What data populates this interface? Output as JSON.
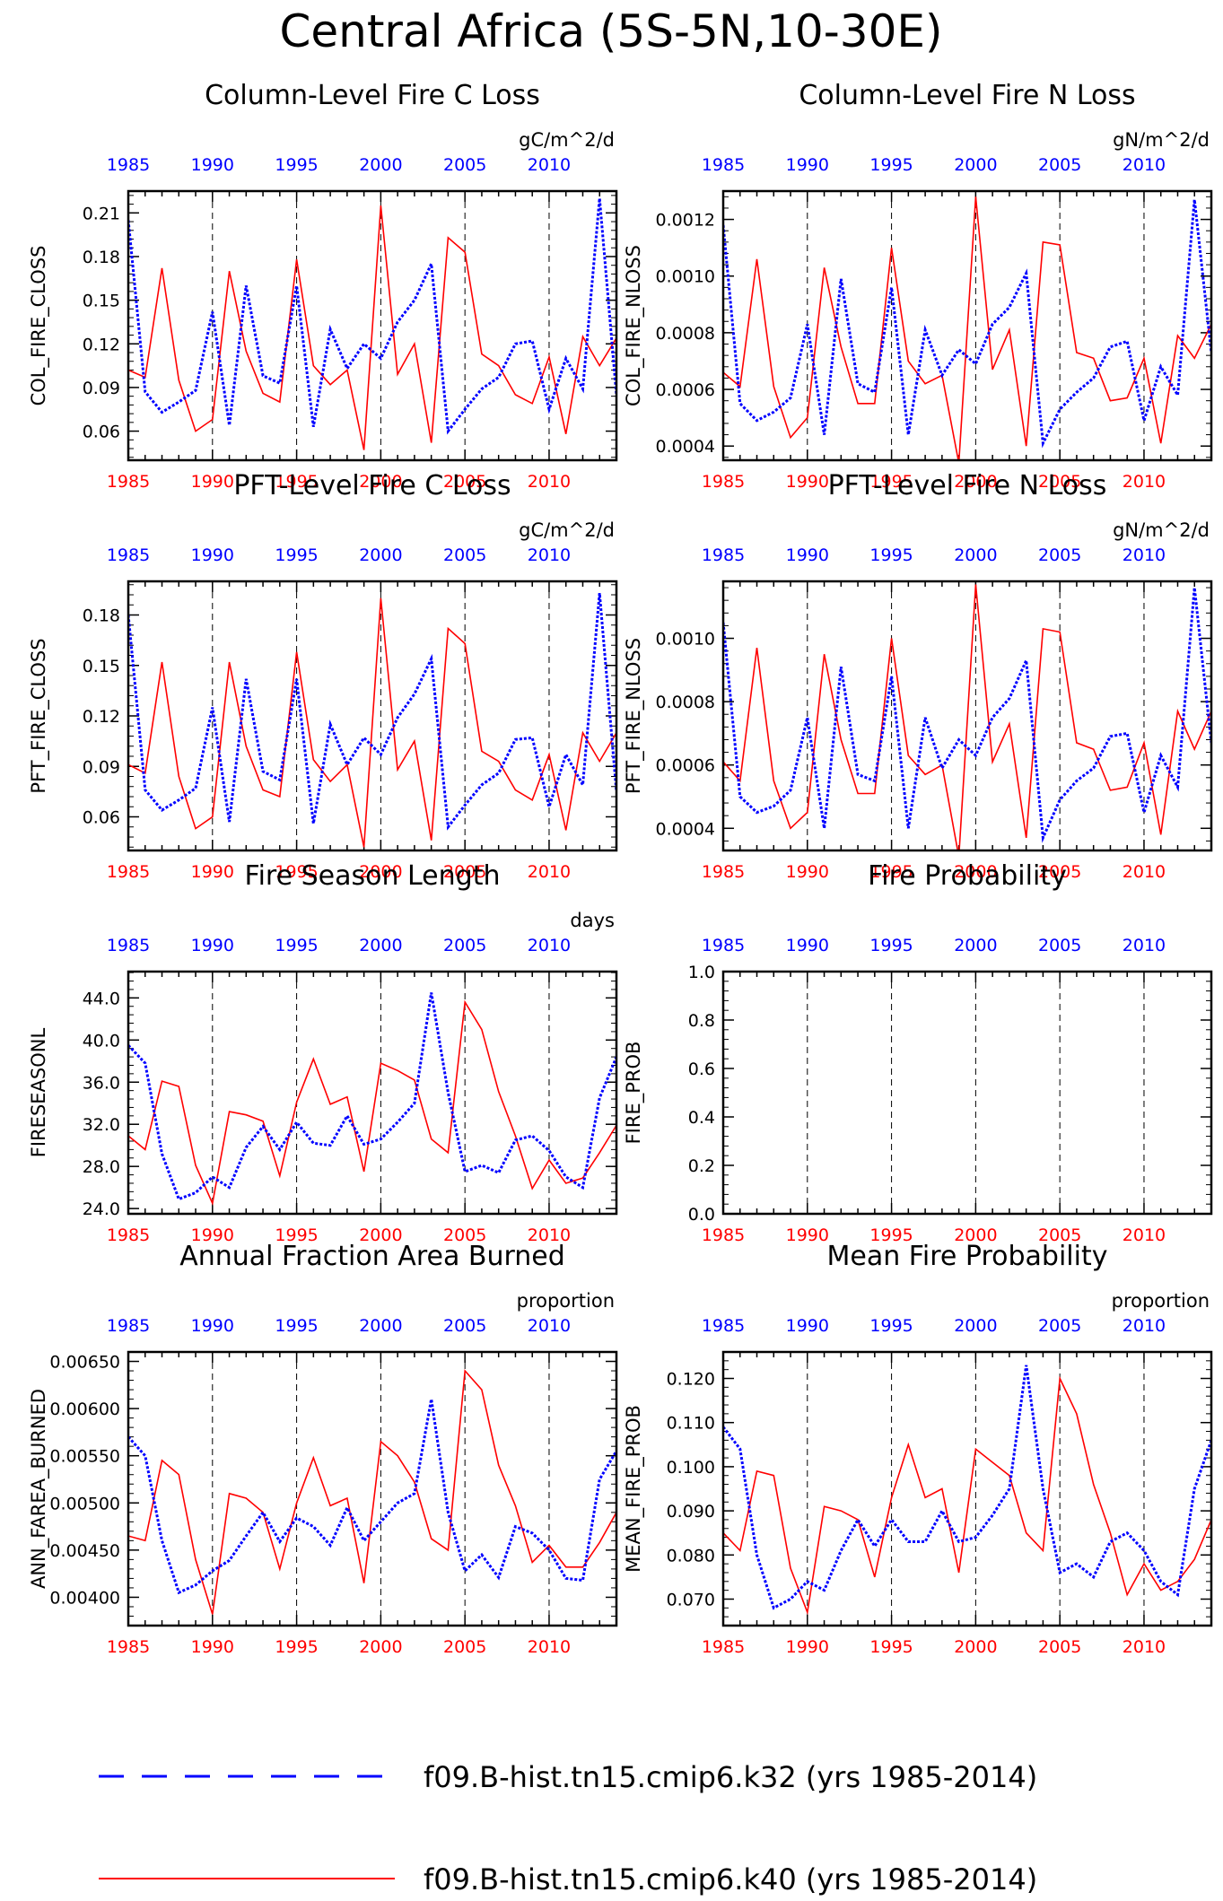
{
  "page": {
    "title": "Central Africa (5S-5N,10-30E)"
  },
  "legend": [
    {
      "label": "f09.B-hist.tn15.cmip6.k32 (yrs 1985-2014)",
      "color": "#0000ff",
      "style": "dashed"
    },
    {
      "label": "f09.B-hist.tn15.cmip6.k40 (yrs 1985-2014)",
      "color": "#ff0000",
      "style": "solid"
    }
  ],
  "chart_data": [
    {
      "type": "line",
      "title": "Column-Level Fire C Loss",
      "ylabel": "COL_FIRE_CLOSS",
      "units": "gC/m^2/d",
      "x": [
        1985,
        1986,
        1987,
        1988,
        1989,
        1990,
        1991,
        1992,
        1993,
        1994,
        1995,
        1996,
        1997,
        1998,
        1999,
        2000,
        2001,
        2002,
        2003,
        2004,
        2005,
        2006,
        2007,
        2008,
        2009,
        2010,
        2011,
        2012,
        2013,
        2014
      ],
      "xlim": [
        1985,
        2014
      ],
      "xticks": [
        "1985",
        "1990",
        "1995",
        "2000",
        "2005",
        "2010"
      ],
      "ylim": [
        0.04,
        0.225
      ],
      "yticks": [
        "0.06",
        "0.09",
        "0.12",
        "0.15",
        "0.18",
        "0.21"
      ],
      "series": [
        {
          "color": "#0000ff",
          "values": [
            0.205,
            0.087,
            0.073,
            0.08,
            0.088,
            0.142,
            0.064,
            0.16,
            0.098,
            0.093,
            0.16,
            0.063,
            0.13,
            0.103,
            0.12,
            0.11,
            0.135,
            0.15,
            0.175,
            0.06,
            0.075,
            0.089,
            0.097,
            0.12,
            0.122,
            0.075,
            0.11,
            0.089,
            0.22,
            0.085
          ]
        },
        {
          "color": "#ff0000",
          "values": [
            0.102,
            0.097,
            0.172,
            0.095,
            0.06,
            0.068,
            0.17,
            0.115,
            0.086,
            0.08,
            0.178,
            0.105,
            0.092,
            0.102,
            0.047,
            0.215,
            0.099,
            0.12,
            0.052,
            0.193,
            0.183,
            0.113,
            0.105,
            0.085,
            0.079,
            0.111,
            0.058,
            0.125,
            0.105,
            0.124
          ]
        }
      ]
    },
    {
      "type": "line",
      "title": "Column-Level Fire N Loss",
      "ylabel": "COL_FIRE_NLOSS",
      "units": "gN/m^2/d",
      "x": [
        1985,
        1986,
        1987,
        1988,
        1989,
        1990,
        1991,
        1992,
        1993,
        1994,
        1995,
        1996,
        1997,
        1998,
        1999,
        2000,
        2001,
        2002,
        2003,
        2004,
        2005,
        2006,
        2007,
        2008,
        2009,
        2010,
        2011,
        2012,
        2013,
        2014
      ],
      "xlim": [
        1985,
        2014
      ],
      "xticks": [
        "1985",
        "1990",
        "1995",
        "2000",
        "2005",
        "2010"
      ],
      "ylim": [
        0.00035,
        0.0013
      ],
      "yticks": [
        "0.0004",
        "0.0006",
        "0.0008",
        "0.0010",
        "0.0012"
      ],
      "series": [
        {
          "color": "#0000ff",
          "values": [
            0.00118,
            0.00055,
            0.00049,
            0.00052,
            0.00057,
            0.00083,
            0.00044,
            0.00099,
            0.00062,
            0.00059,
            0.00096,
            0.00044,
            0.00081,
            0.00065,
            0.00074,
            0.00069,
            0.00083,
            0.00089,
            0.00101,
            0.00041,
            0.00053,
            0.00059,
            0.00064,
            0.00075,
            0.00077,
            0.00049,
            0.00068,
            0.00058,
            0.00127,
            0.00073
          ]
        },
        {
          "color": "#ff0000",
          "values": [
            0.00066,
            0.00061,
            0.00106,
            0.00061,
            0.00043,
            0.0005,
            0.00103,
            0.00075,
            0.00055,
            0.00055,
            0.0011,
            0.0007,
            0.00062,
            0.00065,
            0.00034,
            0.00128,
            0.00067,
            0.00081,
            0.0004,
            0.00112,
            0.00111,
            0.00073,
            0.00071,
            0.00056,
            0.00057,
            0.00071,
            0.00041,
            0.00079,
            0.00071,
            0.00083
          ]
        }
      ]
    },
    {
      "type": "line",
      "title": "PFT-Level Fire C Loss",
      "ylabel": "PFT_FIRE_CLOSS",
      "units": "gC/m^2/d",
      "x": [
        1985,
        1986,
        1987,
        1988,
        1989,
        1990,
        1991,
        1992,
        1993,
        1994,
        1995,
        1996,
        1997,
        1998,
        1999,
        2000,
        2001,
        2002,
        2003,
        2004,
        2005,
        2006,
        2007,
        2008,
        2009,
        2010,
        2011,
        2012,
        2013,
        2014
      ],
      "xlim": [
        1985,
        2014
      ],
      "xticks": [
        "1985",
        "1990",
        "1995",
        "2000",
        "2005",
        "2010"
      ],
      "ylim": [
        0.04,
        0.2
      ],
      "yticks": [
        "0.06",
        "0.09",
        "0.12",
        "0.15",
        "0.18"
      ],
      "series": [
        {
          "color": "#0000ff",
          "values": [
            0.18,
            0.076,
            0.064,
            0.07,
            0.077,
            0.125,
            0.057,
            0.142,
            0.087,
            0.082,
            0.142,
            0.056,
            0.115,
            0.091,
            0.107,
            0.097,
            0.119,
            0.133,
            0.154,
            0.054,
            0.067,
            0.079,
            0.086,
            0.106,
            0.107,
            0.066,
            0.097,
            0.079,
            0.193,
            0.075
          ]
        },
        {
          "color": "#ff0000",
          "values": [
            0.091,
            0.086,
            0.152,
            0.084,
            0.053,
            0.06,
            0.152,
            0.102,
            0.076,
            0.072,
            0.158,
            0.094,
            0.081,
            0.091,
            0.042,
            0.19,
            0.088,
            0.105,
            0.046,
            0.172,
            0.163,
            0.099,
            0.093,
            0.076,
            0.07,
            0.097,
            0.052,
            0.11,
            0.093,
            0.11
          ]
        }
      ]
    },
    {
      "type": "line",
      "title": "PFT-Level Fire N Loss",
      "ylabel": "PFT_FIRE_NLOSS",
      "units": "gN/m^2/d",
      "x": [
        1985,
        1986,
        1987,
        1988,
        1989,
        1990,
        1991,
        1992,
        1993,
        1994,
        1995,
        1996,
        1997,
        1998,
        1999,
        2000,
        2001,
        2002,
        2003,
        2004,
        2005,
        2006,
        2007,
        2008,
        2009,
        2010,
        2011,
        2012,
        2013,
        2014
      ],
      "xlim": [
        1985,
        2014
      ],
      "xticks": [
        "1985",
        "1990",
        "1995",
        "2000",
        "2005",
        "2010"
      ],
      "ylim": [
        0.00033,
        0.00118
      ],
      "yticks": [
        "0.0004",
        "0.0006",
        "0.0008",
        "0.0010"
      ],
      "series": [
        {
          "color": "#0000ff",
          "values": [
            0.00105,
            0.0005,
            0.00045,
            0.00047,
            0.00052,
            0.00075,
            0.0004,
            0.00091,
            0.00057,
            0.00055,
            0.00088,
            0.0004,
            0.00075,
            0.00059,
            0.00068,
            0.00063,
            0.00075,
            0.00081,
            0.00093,
            0.00037,
            0.00049,
            0.00055,
            0.00059,
            0.00069,
            0.0007,
            0.00045,
            0.00063,
            0.00053,
            0.00116,
            0.00067
          ]
        },
        {
          "color": "#ff0000",
          "values": [
            0.00061,
            0.00055,
            0.00097,
            0.00055,
            0.0004,
            0.00045,
            0.00095,
            0.00068,
            0.00051,
            0.00051,
            0.001,
            0.00063,
            0.00057,
            0.0006,
            0.00031,
            0.00117,
            0.00061,
            0.00073,
            0.00037,
            0.00103,
            0.00102,
            0.00067,
            0.00065,
            0.00052,
            0.00053,
            0.00067,
            0.00038,
            0.00077,
            0.00065,
            0.00077
          ]
        }
      ]
    },
    {
      "type": "line",
      "title": "Fire Season Length",
      "ylabel": "FIRESEASONL",
      "units": "days",
      "x": [
        1985,
        1986,
        1987,
        1988,
        1989,
        1990,
        1991,
        1992,
        1993,
        1994,
        1995,
        1996,
        1997,
        1998,
        1999,
        2000,
        2001,
        2002,
        2003,
        2004,
        2005,
        2006,
        2007,
        2008,
        2009,
        2010,
        2011,
        2012,
        2013,
        2014
      ],
      "xlim": [
        1985,
        2014
      ],
      "xticks": [
        "1985",
        "1990",
        "1995",
        "2000",
        "2005",
        "2010"
      ],
      "ylim": [
        23.5,
        46.5
      ],
      "yticks": [
        "24.0",
        "28.0",
        "32.0",
        "36.0",
        "40.0",
        "44.0"
      ],
      "series": [
        {
          "color": "#0000ff",
          "values": [
            39.5,
            37.8,
            29.2,
            24.9,
            25.5,
            27.0,
            26.0,
            29.8,
            31.8,
            29.6,
            32.2,
            30.2,
            30.0,
            32.8,
            30.1,
            30.6,
            32.2,
            34.0,
            44.5,
            35.0,
            27.5,
            28.1,
            27.4,
            30.5,
            30.9,
            29.5,
            27.0,
            26.0,
            34.5,
            38.4
          ]
        },
        {
          "color": "#ff0000",
          "values": [
            30.9,
            29.6,
            36.1,
            35.6,
            28.1,
            24.5,
            33.2,
            32.9,
            32.3,
            27.1,
            34.1,
            38.2,
            33.9,
            34.6,
            27.5,
            37.8,
            37.1,
            36.2,
            30.6,
            29.3,
            43.6,
            41.0,
            35.1,
            30.9,
            25.9,
            28.6,
            26.4,
            26.9,
            29.3,
            31.9
          ]
        }
      ]
    },
    {
      "type": "line",
      "title": "Fire Probability",
      "ylabel": "FIRE_PROB",
      "units": "",
      "x": [
        1985,
        1986,
        1987,
        1988,
        1989,
        1990,
        1991,
        1992,
        1993,
        1994,
        1995,
        1996,
        1997,
        1998,
        1999,
        2000,
        2001,
        2002,
        2003,
        2004,
        2005,
        2006,
        2007,
        2008,
        2009,
        2010,
        2011,
        2012,
        2013,
        2014
      ],
      "xlim": [
        1985,
        2014
      ],
      "xticks": [
        "1985",
        "1990",
        "1995",
        "2000",
        "2005",
        "2010"
      ],
      "ylim": [
        0,
        1
      ],
      "yticks": [
        "0.0",
        "0.2",
        "0.4",
        "0.6",
        "0.8",
        "1.0"
      ],
      "series": []
    },
    {
      "type": "line",
      "title": "Annual Fraction Area Burned",
      "ylabel": "ANN_FAREA_BURNED",
      "units": "proportion",
      "x": [
        1985,
        1986,
        1987,
        1988,
        1989,
        1990,
        1991,
        1992,
        1993,
        1994,
        1995,
        1996,
        1997,
        1998,
        1999,
        2000,
        2001,
        2002,
        2003,
        2004,
        2005,
        2006,
        2007,
        2008,
        2009,
        2010,
        2011,
        2012,
        2013,
        2014
      ],
      "xlim": [
        1985,
        2014
      ],
      "xticks": [
        "1985",
        "1990",
        "1995",
        "2000",
        "2005",
        "2010"
      ],
      "ylim": [
        0.0037,
        0.0066
      ],
      "yticks": [
        "0.00400",
        "0.00450",
        "0.00500",
        "0.00550",
        "0.00600",
        "0.00650"
      ],
      "series": [
        {
          "color": "#0000ff",
          "values": [
            0.0057,
            0.0055,
            0.0046,
            0.00405,
            0.00413,
            0.00428,
            0.00439,
            0.00465,
            0.0049,
            0.00459,
            0.00484,
            0.00475,
            0.00455,
            0.00495,
            0.0046,
            0.0048,
            0.005,
            0.0051,
            0.0061,
            0.0049,
            0.00428,
            0.00445,
            0.00421,
            0.00475,
            0.00468,
            0.0045,
            0.0042,
            0.00418,
            0.00525,
            0.00555
          ]
        },
        {
          "color": "#ff0000",
          "values": [
            0.00465,
            0.0046,
            0.00545,
            0.0053,
            0.0044,
            0.00382,
            0.0051,
            0.00505,
            0.0049,
            0.0043,
            0.005,
            0.00548,
            0.00497,
            0.00505,
            0.00415,
            0.00565,
            0.0055,
            0.00522,
            0.00462,
            0.0045,
            0.0064,
            0.0062,
            0.0054,
            0.00497,
            0.00437,
            0.00455,
            0.00432,
            0.00432,
            0.00458,
            0.0049
          ]
        }
      ]
    },
    {
      "type": "line",
      "title": "Mean Fire Probability",
      "ylabel": "MEAN_FIRE_PROB",
      "units": "proportion",
      "x": [
        1985,
        1986,
        1987,
        1988,
        1989,
        1990,
        1991,
        1992,
        1993,
        1994,
        1995,
        1996,
        1997,
        1998,
        1999,
        2000,
        2001,
        2002,
        2003,
        2004,
        2005,
        2006,
        2007,
        2008,
        2009,
        2010,
        2011,
        2012,
        2013,
        2014
      ],
      "xlim": [
        1985,
        2014
      ],
      "xticks": [
        "1985",
        "1990",
        "1995",
        "2000",
        "2005",
        "2010"
      ],
      "ylim": [
        0.064,
        0.126
      ],
      "yticks": [
        "0.070",
        "0.080",
        "0.090",
        "0.100",
        "0.110",
        "0.120"
      ],
      "series": [
        {
          "color": "#0000ff",
          "values": [
            0.109,
            0.104,
            0.08,
            0.068,
            0.07,
            0.074,
            0.072,
            0.081,
            0.088,
            0.082,
            0.088,
            0.083,
            0.083,
            0.09,
            0.083,
            0.084,
            0.089,
            0.095,
            0.123,
            0.095,
            0.076,
            0.078,
            0.075,
            0.083,
            0.085,
            0.081,
            0.074,
            0.071,
            0.095,
            0.106
          ]
        },
        {
          "color": "#ff0000",
          "values": [
            0.085,
            0.081,
            0.099,
            0.098,
            0.077,
            0.067,
            0.091,
            0.09,
            0.088,
            0.075,
            0.093,
            0.105,
            0.093,
            0.095,
            0.076,
            0.104,
            0.101,
            0.098,
            0.085,
            0.081,
            0.12,
            0.112,
            0.096,
            0.085,
            0.071,
            0.078,
            0.072,
            0.074,
            0.079,
            0.088
          ]
        }
      ]
    }
  ]
}
